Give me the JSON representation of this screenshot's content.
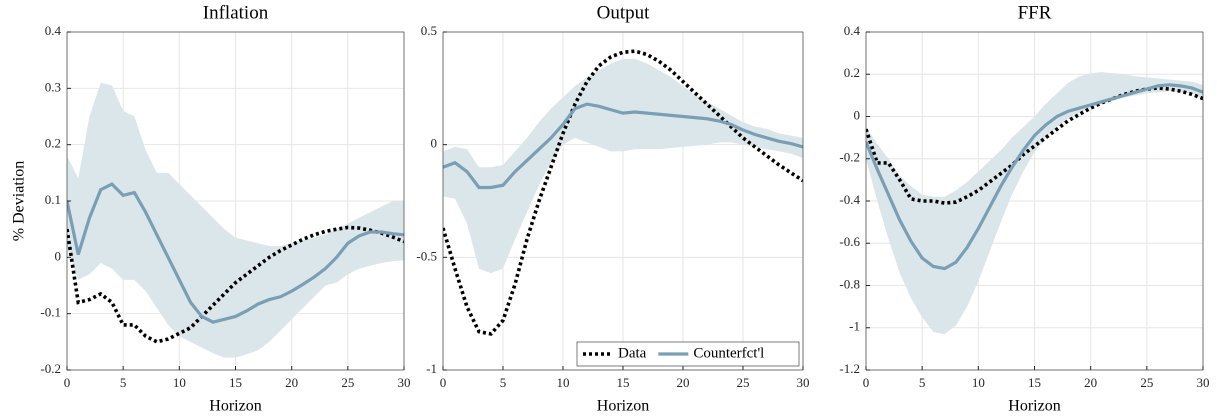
{
  "chart_data": [
    {
      "type": "line",
      "title": "Inflation",
      "xlabel": "Horizon",
      "ylabel": "% Deviation",
      "x": [
        0,
        1,
        2,
        3,
        4,
        5,
        6,
        7,
        8,
        9,
        10,
        11,
        12,
        13,
        14,
        15,
        16,
        17,
        18,
        19,
        20,
        21,
        22,
        23,
        24,
        25,
        26,
        27,
        28,
        29,
        30
      ],
      "xlim": [
        0,
        30
      ],
      "xticks": [
        0,
        5,
        10,
        15,
        20,
        25,
        30
      ],
      "ylim": [
        -0.2,
        0.4
      ],
      "yticks": [
        -0.2,
        -0.1,
        0,
        0.1,
        0.2,
        0.3,
        0.4
      ],
      "grid": true,
      "band": {
        "color": "#dbe6ea",
        "lower": [
          0.02,
          -0.04,
          -0.03,
          -0.01,
          -0.02,
          -0.04,
          -0.04,
          -0.06,
          -0.09,
          -0.12,
          -0.14,
          -0.15,
          -0.16,
          -0.17,
          -0.178,
          -0.178,
          -0.172,
          -0.165,
          -0.15,
          -0.13,
          -0.11,
          -0.09,
          -0.07,
          -0.05,
          -0.045,
          -0.03,
          -0.02,
          -0.015,
          -0.01,
          -0.007,
          -0.005
        ],
        "upper": [
          0.18,
          0.14,
          0.25,
          0.31,
          0.305,
          0.26,
          0.25,
          0.19,
          0.15,
          0.15,
          0.13,
          0.11,
          0.09,
          0.07,
          0.05,
          0.035,
          0.03,
          0.025,
          0.02,
          0.02,
          0.025,
          0.03,
          0.035,
          0.04,
          0.05,
          0.06,
          0.07,
          0.08,
          0.09,
          0.1,
          0.1
        ]
      },
      "series": [
        {
          "color": "#000000",
          "style": "dotted",
          "values": [
            0.05,
            -0.08,
            -0.075,
            -0.065,
            -0.08,
            -0.12,
            -0.12,
            -0.14,
            -0.15,
            -0.145,
            -0.135,
            -0.125,
            -0.105,
            -0.085,
            -0.065,
            -0.045,
            -0.03,
            -0.015,
            0,
            0.012,
            0.022,
            0.032,
            0.04,
            0.046,
            0.05,
            0.053,
            0.052,
            0.048,
            0.043,
            0.036,
            0.028
          ]
        },
        {
          "color": "#7a9fb5",
          "style": "solid",
          "values": [
            0.1,
            0.005,
            0.07,
            0.12,
            0.13,
            0.11,
            0.115,
            0.08,
            0.04,
            0,
            -0.04,
            -0.08,
            -0.105,
            -0.115,
            -0.11,
            -0.105,
            -0.095,
            -0.083,
            -0.075,
            -0.07,
            -0.06,
            -0.048,
            -0.035,
            -0.02,
            0,
            0.025,
            0.038,
            0.045,
            0.045,
            0.042,
            0.04
          ]
        }
      ]
    },
    {
      "type": "line",
      "title": "Output",
      "xlabel": "Horizon",
      "x": [
        0,
        1,
        2,
        3,
        4,
        5,
        6,
        7,
        8,
        9,
        10,
        11,
        12,
        13,
        14,
        15,
        16,
        17,
        18,
        19,
        20,
        21,
        22,
        23,
        24,
        25,
        26,
        27,
        28,
        29,
        30
      ],
      "xlim": [
        0,
        30
      ],
      "xticks": [
        0,
        5,
        10,
        15,
        20,
        25,
        30
      ],
      "ylim": [
        -1,
        0.5
      ],
      "yticks": [
        -1,
        -0.5,
        0,
        0.5
      ],
      "grid": true,
      "legend": "lower right",
      "band": {
        "color": "#dbe6ea",
        "lower": [
          -0.23,
          -0.24,
          -0.35,
          -0.55,
          -0.57,
          -0.55,
          -0.42,
          -0.3,
          -0.18,
          -0.08,
          0,
          0.03,
          0.01,
          -0.01,
          -0.03,
          -0.03,
          -0.02,
          -0.02,
          -0.02,
          -0.015,
          -0.01,
          -0.005,
          0,
          0.01,
          0.01,
          0,
          -0.01,
          -0.02,
          -0.03,
          -0.04,
          -0.06
        ],
        "upper": [
          -0.03,
          -0.01,
          -0.02,
          -0.1,
          -0.1,
          -0.09,
          -0.03,
          0.03,
          0.1,
          0.16,
          0.21,
          0.26,
          0.3,
          0.33,
          0.36,
          0.38,
          0.38,
          0.36,
          0.33,
          0.3,
          0.26,
          0.22,
          0.19,
          0.16,
          0.13,
          0.1,
          0.08,
          0.07,
          0.05,
          0.04,
          0.03
        ]
      },
      "series": [
        {
          "name": "Data",
          "color": "#000000",
          "style": "dotted",
          "values": [
            -0.37,
            -0.55,
            -0.72,
            -0.83,
            -0.84,
            -0.78,
            -0.62,
            -0.42,
            -0.25,
            -0.1,
            0.05,
            0.18,
            0.28,
            0.35,
            0.39,
            0.41,
            0.415,
            0.4,
            0.37,
            0.33,
            0.28,
            0.23,
            0.18,
            0.13,
            0.08,
            0.03,
            -0.01,
            -0.05,
            -0.09,
            -0.125,
            -0.16
          ]
        },
        {
          "name": "Counterfct'l",
          "color": "#7a9fb5",
          "style": "solid",
          "values": [
            -0.1,
            -0.08,
            -0.12,
            -0.19,
            -0.19,
            -0.18,
            -0.12,
            -0.07,
            -0.02,
            0.03,
            0.09,
            0.16,
            0.18,
            0.17,
            0.155,
            0.14,
            0.145,
            0.14,
            0.135,
            0.13,
            0.125,
            0.12,
            0.115,
            0.105,
            0.09,
            0.065,
            0.045,
            0.03,
            0.015,
            0.005,
            -0.01
          ]
        }
      ]
    },
    {
      "type": "line",
      "title": "FFR",
      "xlabel": "Horizon",
      "x": [
        0,
        1,
        2,
        3,
        4,
        5,
        6,
        7,
        8,
        9,
        10,
        11,
        12,
        13,
        14,
        15,
        16,
        17,
        18,
        19,
        20,
        21,
        22,
        23,
        24,
        25,
        26,
        27,
        28,
        29,
        30
      ],
      "xlim": [
        0,
        30
      ],
      "xticks": [
        0,
        5,
        10,
        15,
        20,
        25,
        30
      ],
      "ylim": [
        -1.2,
        0.4
      ],
      "yticks": [
        -1.2,
        -1,
        -0.8,
        -0.6,
        -0.4,
        -0.2,
        0,
        0.2,
        0.4
      ],
      "grid": true,
      "band": {
        "color": "#dbe6ea",
        "lower": [
          -0.2,
          -0.4,
          -0.58,
          -0.74,
          -0.86,
          -0.95,
          -1.02,
          -1.03,
          -0.99,
          -0.9,
          -0.78,
          -0.64,
          -0.5,
          -0.37,
          -0.26,
          -0.17,
          -0.1,
          -0.05,
          -0.01,
          0.02,
          0.04,
          0.06,
          0.075,
          0.09,
          0.1,
          0.11,
          0.115,
          0.12,
          0.115,
          0.11,
          0.08
        ],
        "upper": [
          -0.05,
          -0.13,
          -0.2,
          -0.28,
          -0.33,
          -0.37,
          -0.38,
          -0.38,
          -0.35,
          -0.31,
          -0.26,
          -0.21,
          -0.16,
          -0.1,
          -0.05,
          0,
          0.06,
          0.11,
          0.16,
          0.19,
          0.205,
          0.21,
          0.205,
          0.2,
          0.19,
          0.185,
          0.18,
          0.175,
          0.17,
          0.165,
          0.15
        ]
      },
      "series": [
        {
          "color": "#000000",
          "style": "dotted",
          "values": [
            -0.06,
            -0.22,
            -0.22,
            -0.3,
            -0.39,
            -0.4,
            -0.4,
            -0.41,
            -0.405,
            -0.38,
            -0.35,
            -0.31,
            -0.27,
            -0.23,
            -0.18,
            -0.14,
            -0.1,
            -0.06,
            -0.02,
            0.01,
            0.04,
            0.065,
            0.085,
            0.105,
            0.12,
            0.13,
            0.135,
            0.13,
            0.12,
            0.105,
            0.085
          ]
        },
        {
          "color": "#7a9fb5",
          "style": "solid",
          "values": [
            -0.12,
            -0.25,
            -0.37,
            -0.49,
            -0.59,
            -0.67,
            -0.71,
            -0.72,
            -0.69,
            -0.62,
            -0.53,
            -0.43,
            -0.33,
            -0.24,
            -0.16,
            -0.09,
            -0.04,
            0,
            0.025,
            0.04,
            0.055,
            0.07,
            0.085,
            0.1,
            0.115,
            0.13,
            0.145,
            0.15,
            0.145,
            0.135,
            0.115
          ]
        }
      ]
    }
  ]
}
